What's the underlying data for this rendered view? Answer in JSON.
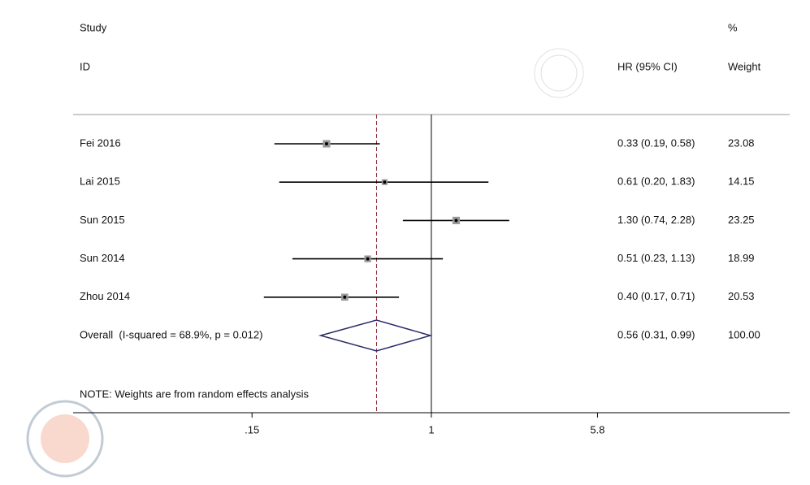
{
  "chart_data": {
    "type": "forest",
    "header": {
      "study": "Study",
      "id": "ID",
      "pct": "%",
      "effect": "HR (95% CI)",
      "weight": "Weight"
    },
    "studies": [
      {
        "name": "Fei 2016",
        "hr": 0.33,
        "lower": 0.19,
        "upper": 0.58,
        "ci_label": "0.33 (0.19, 0.58)",
        "weight": 23.08,
        "weight_label": "23.08"
      },
      {
        "name": "Lai 2015",
        "hr": 0.61,
        "lower": 0.2,
        "upper": 1.83,
        "ci_label": "0.61 (0.20, 1.83)",
        "weight": 14.15,
        "weight_label": "14.15"
      },
      {
        "name": "Sun 2015",
        "hr": 1.3,
        "lower": 0.74,
        "upper": 2.28,
        "ci_label": "1.30 (0.74, 2.28)",
        "weight": 23.25,
        "weight_label": "23.25"
      },
      {
        "name": "Sun 2014",
        "hr": 0.51,
        "lower": 0.23,
        "upper": 1.13,
        "ci_label": "0.51 (0.23, 1.13)",
        "weight": 18.99,
        "weight_label": "18.99"
      },
      {
        "name": "Zhou 2014",
        "hr": 0.4,
        "lower": 0.17,
        "upper": 0.71,
        "ci_label": "0.40 (0.17, 0.71)",
        "weight": 20.53,
        "weight_label": "20.53"
      }
    ],
    "overall": {
      "name": "Overall  (I-squared = 68.9%, p = 0.012)",
      "hr": 0.56,
      "lower": 0.31,
      "upper": 0.99,
      "ci_label": "0.56 (0.31, 0.99)",
      "weight": 100,
      "weight_label": "100.00"
    },
    "note": "NOTE: Weights are from random effects analysis",
    "xlim": [
      0.0226,
      44.3
    ],
    "xticks": [
      {
        "value": 0.15,
        "label": ".15"
      },
      1,
      5.8
    ],
    "log_scale": true,
    "null_line": 1
  }
}
